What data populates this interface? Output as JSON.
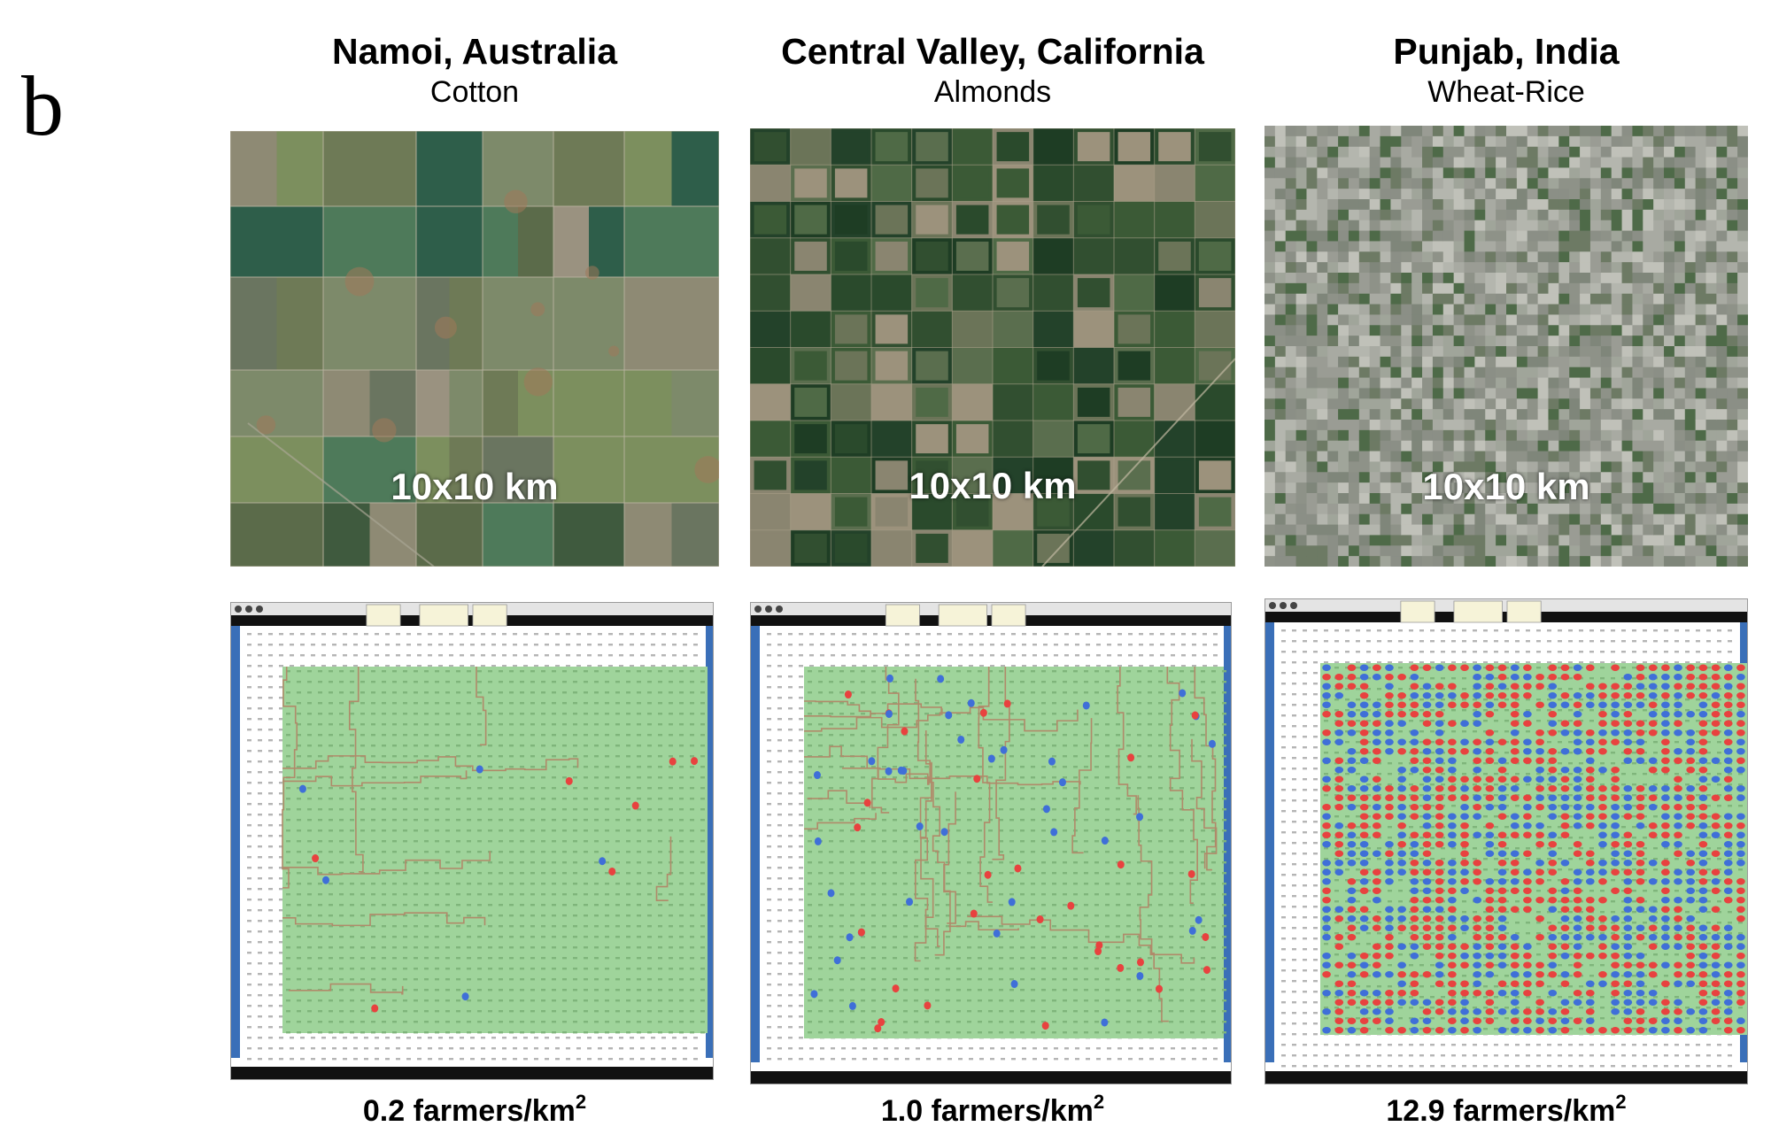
{
  "figure": {
    "panel_label": "b",
    "scale_label": "10x10 km",
    "density_unit": "farmers/km",
    "density_unit_exponent": "2",
    "colors": {
      "field_green": "#9fd49b",
      "boundary_brown": "#b08a6a",
      "farmer_red": "#e8423f",
      "farmer_blue": "#3f6fd8",
      "side_bar_blue": "#3a6fb8",
      "frame_black": "#111111"
    },
    "panels": [
      {
        "region": "Namoi, Australia",
        "crop": "Cotton",
        "density_value": "0.2",
        "simulation_pattern": "sparse"
      },
      {
        "region": "Central Valley, California",
        "crop": "Almonds",
        "density_value": "1.0",
        "simulation_pattern": "medium"
      },
      {
        "region": "Punjab, India",
        "crop": "Wheat-Rice",
        "density_value": "12.9",
        "simulation_pattern": "dense"
      }
    ]
  }
}
